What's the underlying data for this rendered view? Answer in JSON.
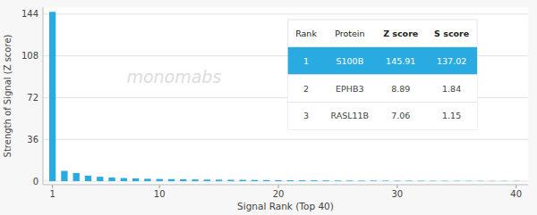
{
  "chart_data": {
    "type": "bar",
    "xlabel": "Signal Rank (Top 40)",
    "ylabel": "Strength of Signal (Z score)",
    "x": [
      1,
      2,
      3,
      4,
      5,
      6,
      7,
      8,
      9,
      10,
      11,
      12,
      13,
      14,
      15,
      16,
      17,
      18,
      19,
      20,
      21,
      22,
      23,
      24,
      25,
      26,
      27,
      28,
      29,
      30,
      31,
      32,
      33,
      34,
      35,
      36,
      37,
      38,
      39,
      40
    ],
    "values": [
      145.91,
      8.89,
      7.06,
      4.8,
      3.8,
      3.2,
      2.7,
      2.4,
      2.1,
      1.9,
      1.75,
      1.6,
      1.5,
      1.4,
      1.3,
      1.2,
      1.15,
      1.05,
      1.0,
      0.9,
      0.8,
      0.75,
      0.7,
      0.65,
      0.6,
      0.55,
      0.5,
      0.48,
      0.45,
      0.42,
      0.4,
      0.38,
      0.35,
      0.33,
      0.31,
      0.3,
      0.28,
      0.26,
      0.25,
      0.24
    ],
    "color": "#29abe2",
    "xlim": [
      0.2,
      41
    ],
    "ylim": [
      -3,
      150
    ],
    "xticks": [
      1,
      10,
      20,
      30,
      40
    ],
    "yticks": [
      0,
      36,
      72,
      108,
      144
    ],
    "grid": true,
    "watermark": "monomabs",
    "table": {
      "headers": [
        "Rank",
        "Protein",
        "Z score",
        "S score"
      ],
      "rows": [
        [
          "1",
          "S100B",
          "145.91",
          "137.02"
        ],
        [
          "2",
          "EPHB3",
          "8.89",
          "1.84"
        ],
        [
          "3",
          "RASL11B",
          "7.06",
          "1.15"
        ]
      ]
    }
  }
}
